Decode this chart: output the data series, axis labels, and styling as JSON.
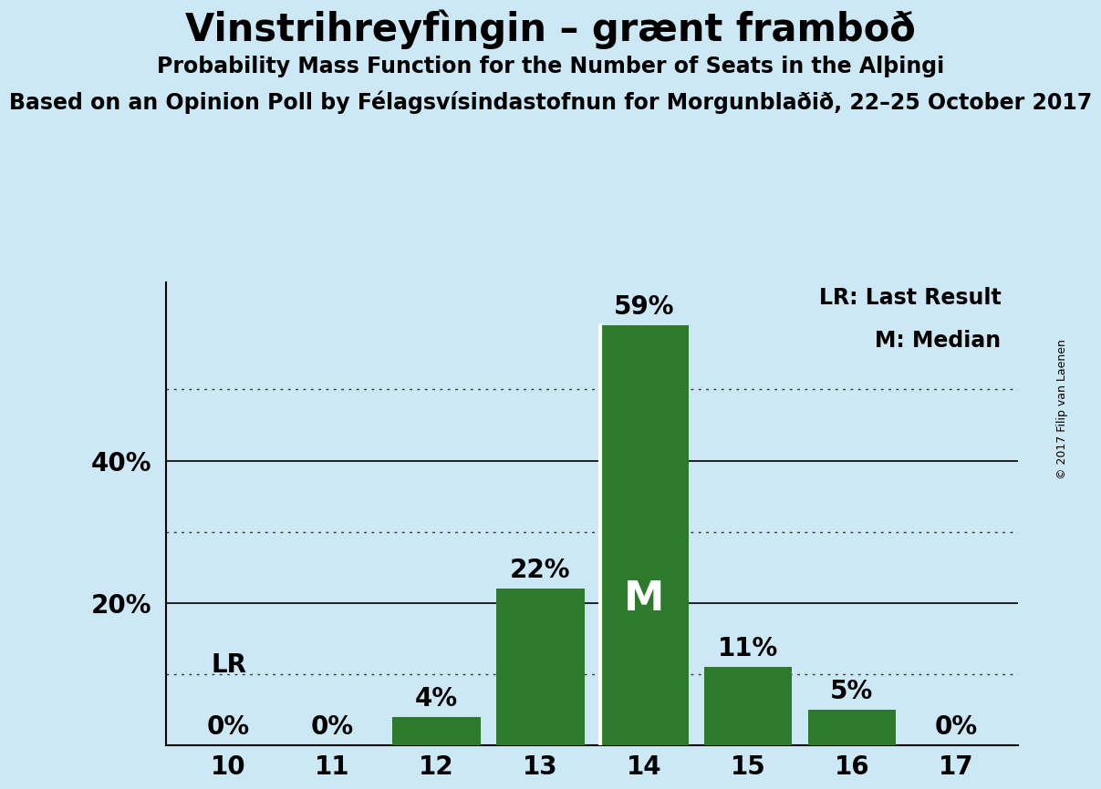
{
  "title": "Vinstrihreyfìngin – grænt framboð",
  "subtitle": "Probability Mass Function for the Number of Seats in the Alþingi",
  "subsubtitle": "Based on an Opinion Poll by Félagsvísindastofnun for Morgunblaðið, 22–25 October 2017",
  "copyright": "© 2017 Filip van Laenen",
  "seats": [
    10,
    11,
    12,
    13,
    14,
    15,
    16,
    17
  ],
  "probabilities": [
    0.0,
    0.0,
    0.04,
    0.22,
    0.59,
    0.11,
    0.05,
    0.0
  ],
  "bar_color": "#2d7a2d",
  "background_color": "#cce8f4",
  "median_seat": 14,
  "lr_seat": 10,
  "solid_yticks": [
    0.2,
    0.4
  ],
  "dotted_yticks": [
    0.1,
    0.3,
    0.5
  ],
  "ylim": [
    0,
    0.65
  ],
  "title_fontsize": 30,
  "subtitle_fontsize": 17,
  "subsubtitle_fontsize": 17,
  "bar_label_fontsize": 20,
  "tick_fontsize": 20,
  "legend_fontsize": 17,
  "copyright_fontsize": 9,
  "M_fontsize": 32
}
